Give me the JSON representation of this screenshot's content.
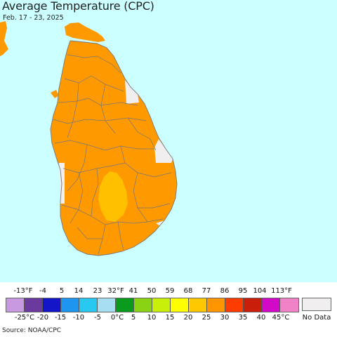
{
  "header": {
    "title": "Average Temperature (CPC)",
    "date_range": "Feb. 17 - 23, 2025"
  },
  "colors": {
    "ocean": "#ccffff",
    "land_main": "#ff9900",
    "land_warm": "#ffc000",
    "land_nodata": "#f0eeee",
    "borders": "#777777"
  },
  "legend": {
    "fahrenheit_ticks": [
      "-13°F",
      "-4",
      "5",
      "14",
      "23",
      "32°F",
      "41",
      "50",
      "59",
      "68",
      "77",
      "86",
      "95",
      "104",
      "113°F"
    ],
    "celsius_ticks": [
      "-25°C",
      "-20",
      "-15",
      "-10",
      "-5",
      "0°C",
      "5",
      "10",
      "15",
      "20",
      "25",
      "30",
      "35",
      "40",
      "45°C"
    ],
    "swatch_colors": [
      "#c898e0",
      "#6a3a9e",
      "#1414c8",
      "#1e96f0",
      "#28c8f0",
      "#a8def2",
      "#0a9a1e",
      "#8ad214",
      "#c8ef0a",
      "#ffff00",
      "#ffc800",
      "#ff9600",
      "#ff3c00",
      "#c81e0a",
      "#d20ac8",
      "#f082c8"
    ],
    "no_data_label": "No Data",
    "no_data_color": "#f0eeee"
  },
  "footer": {
    "source": "Source: NOAA/CPC"
  }
}
